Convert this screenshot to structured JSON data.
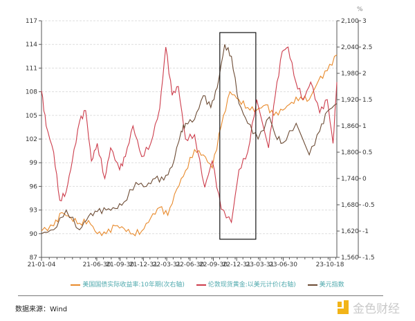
{
  "chart_data": {
    "type": "line",
    "unit_label": "%",
    "x_tick_labels": [
      "21-01-04",
      "21-06-30",
      "21-09-30",
      "21-12-31",
      "22-03-31",
      "22-06-30",
      "22-09-30",
      "22-12-31",
      "23-03-31",
      "23-06-30",
      "23-10-18"
    ],
    "x_range": [
      "2021-01-04",
      "2023-10-18"
    ],
    "axes": {
      "left": {
        "range": [
          87,
          117
        ],
        "ticks": [
          87,
          90,
          93,
          96,
          99,
          102,
          105,
          108,
          111,
          114,
          117
        ]
      },
      "right": {
        "range": [
          1560,
          2100
        ],
        "ticks": [
          "1,560",
          "1,620",
          "1,680",
          "1,740",
          "1,800",
          "1,860",
          "1,920",
          "1,980",
          "2,040",
          "2,100"
        ]
      },
      "right2": {
        "range": [
          -1.5,
          3
        ],
        "ticks": [
          "-1.5",
          "-1",
          "-0.5",
          "0",
          "0.5",
          "1",
          "1.5",
          "2",
          "2.5",
          "3"
        ]
      }
    },
    "grid": "horizontal dashed",
    "legend_position": "bottom",
    "series": [
      {
        "name": "美国国债实际收益率:10年期(次右轴)",
        "axis": "right2",
        "color": "#e8892a",
        "x": [
          "2021-01-04",
          "2021-02-15",
          "2021-03-15",
          "2021-04-15",
          "2021-05-15",
          "2021-06-15",
          "2021-07-15",
          "2021-08-15",
          "2021-09-15",
          "2021-10-15",
          "2021-11-15",
          "2021-12-15",
          "2022-01-15",
          "2022-02-15",
          "2022-03-15",
          "2022-04-15",
          "2022-05-15",
          "2022-06-15",
          "2022-07-15",
          "2022-08-15",
          "2022-09-15",
          "2022-10-15",
          "2022-11-15",
          "2022-12-15",
          "2023-01-15",
          "2023-02-15",
          "2023-03-15",
          "2023-04-15",
          "2023-05-15",
          "2023-06-15",
          "2023-07-15",
          "2023-08-15",
          "2023-09-15",
          "2023-10-18"
        ],
        "y": [
          -1.0,
          -0.9,
          -0.65,
          -0.75,
          -0.85,
          -0.8,
          -1.05,
          -1.05,
          -0.9,
          -0.95,
          -1.05,
          -1.0,
          -0.75,
          -0.55,
          -0.7,
          -0.2,
          0.15,
          0.55,
          0.45,
          0.2,
          1.0,
          1.65,
          1.5,
          1.35,
          1.3,
          1.4,
          1.2,
          1.3,
          1.45,
          1.55,
          1.5,
          1.85,
          2.05,
          2.35
        ]
      },
      {
        "name": "伦敦现货黄金:以美元计价(右轴)",
        "axis": "right",
        "color": "#cc3b4a",
        "x": [
          "2021-01-04",
          "2021-01-20",
          "2021-02-15",
          "2021-03-08",
          "2021-03-30",
          "2021-04-20",
          "2021-05-15",
          "2021-06-05",
          "2021-06-25",
          "2021-07-15",
          "2021-08-10",
          "2021-08-30",
          "2021-09-30",
          "2021-10-20",
          "2021-11-15",
          "2021-12-15",
          "2022-01-15",
          "2022-02-15",
          "2022-03-08",
          "2022-03-30",
          "2022-04-20",
          "2022-05-15",
          "2022-06-15",
          "2022-07-20",
          "2022-08-15",
          "2022-09-15",
          "2022-10-20",
          "2022-11-15",
          "2022-12-15",
          "2023-01-15",
          "2023-02-25",
          "2023-03-20",
          "2023-04-13",
          "2023-05-03",
          "2023-05-30",
          "2023-06-25",
          "2023-07-20",
          "2023-08-20",
          "2023-09-15",
          "2023-10-05",
          "2023-10-18"
        ],
        "y": [
          1940,
          1860,
          1800,
          1690,
          1710,
          1780,
          1870,
          1895,
          1780,
          1820,
          1740,
          1810,
          1760,
          1790,
          1860,
          1790,
          1820,
          1900,
          2040,
          1930,
          1950,
          1830,
          1840,
          1720,
          1780,
          1670,
          1640,
          1760,
          1800,
          1920,
          1810,
          1930,
          2030,
          2040,
          1960,
          1920,
          1960,
          1890,
          1920,
          1820,
          1960
        ]
      },
      {
        "name": "美元指数",
        "axis": "left",
        "color": "#6b4a33",
        "x": [
          "2021-01-04",
          "2021-02-15",
          "2021-03-30",
          "2021-05-15",
          "2021-06-15",
          "2021-07-15",
          "2021-08-15",
          "2021-09-15",
          "2021-10-15",
          "2021-11-25",
          "2021-12-31",
          "2022-01-30",
          "2022-03-01",
          "2022-03-30",
          "2022-04-30",
          "2022-05-15",
          "2022-06-15",
          "2022-07-15",
          "2022-08-10",
          "2022-09-01",
          "2022-09-27",
          "2022-10-20",
          "2022-11-15",
          "2022-12-15",
          "2023-01-20",
          "2023-02-28",
          "2023-03-20",
          "2023-04-15",
          "2023-05-31",
          "2023-07-15",
          "2023-08-20",
          "2023-09-15",
          "2023-10-18"
        ],
        "y": [
          90,
          90.5,
          93,
          90.5,
          92.2,
          92.8,
          93,
          93.2,
          94,
          96.5,
          96,
          97,
          96.8,
          98.5,
          103,
          104,
          104.5,
          107.5,
          106,
          108.5,
          114,
          112.5,
          106.5,
          104,
          102,
          104.8,
          102.5,
          101.5,
          104,
          100,
          103,
          105.5,
          106.5
        ]
      }
    ],
    "annotations": [
      {
        "type": "rectangle",
        "x": [
          "2022-09-10",
          "2023-01-12"
        ],
        "y_left": [
          89.3,
          115.5
        ]
      }
    ]
  },
  "footer": {
    "source": "数据来源：Wind"
  },
  "logo": {
    "text": "金色财经",
    "color": "#f2b418"
  }
}
